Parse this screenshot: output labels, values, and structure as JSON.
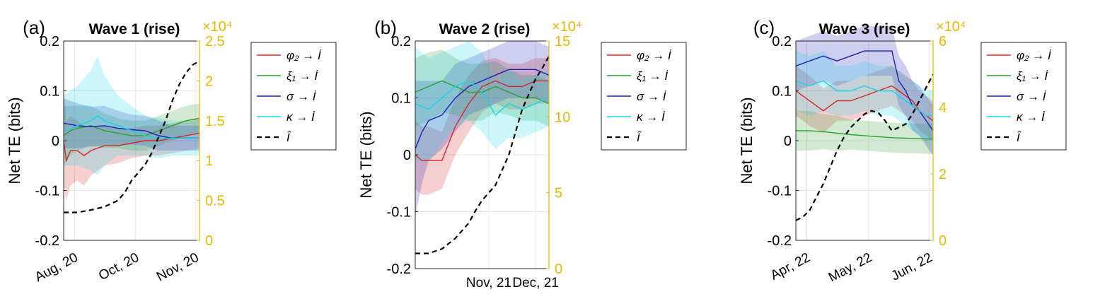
{
  "colors": {
    "phi": "#d62728",
    "xi": "#2ca02c",
    "sigma": "#1f1fb4",
    "kappa": "#17d4e8",
    "infected": "#000000",
    "right_axis": "#e6b800"
  },
  "chart_data": [
    {
      "type": "line",
      "panel_label": "(a)",
      "title": "Wave 1 (rise)",
      "ylabel": "Net TE (bits)",
      "ylim": [
        -0.2,
        0.2
      ],
      "yticks": [
        "-0.2",
        "-0.1",
        "0",
        "0.1",
        "0.2"
      ],
      "xticks": [
        "Aug, 20",
        "Oct, 20",
        "Nov, 20"
      ],
      "xtick_rotated": true,
      "y2_exponent_label": "×10⁴",
      "y2lim": [
        0,
        2.5
      ],
      "y2ticks": [
        "0",
        "0.5",
        "1",
        "1.5",
        "2",
        "2.5"
      ],
      "legend": [
        "φ₂ → İ",
        "ξ₁ → İ",
        "σ → İ",
        "κ → İ",
        "Î"
      ],
      "legend_position": "outside-right",
      "series": [
        {
          "name": "φ₂ → İ",
          "key": "phi",
          "x": [
            0,
            0.02,
            0.05,
            0.1,
            0.15,
            0.2,
            0.3,
            0.4,
            0.5,
            0.6,
            0.7,
            0.8,
            0.9,
            1
          ],
          "y": [
            0,
            -0.04,
            -0.02,
            -0.02,
            -0.03,
            -0.02,
            -0.01,
            -0.01,
            -0.005,
            0,
            0,
            0.005,
            0.01,
            0.015
          ],
          "band": [
            0.09,
            0.08,
            0.07,
            0.06,
            0.06,
            0.05,
            0.04,
            0.035,
            0.03,
            0.03,
            0.03,
            0.03,
            0.03,
            0.03
          ]
        },
        {
          "name": "ξ₁ → İ",
          "key": "xi",
          "x": [
            0,
            0.05,
            0.1,
            0.2,
            0.3,
            0.4,
            0.5,
            0.6,
            0.7,
            0.8,
            0.9,
            1
          ],
          "y": [
            0.01,
            0.02,
            0.025,
            0.03,
            0.02,
            0.015,
            0.01,
            0.01,
            0.02,
            0.03,
            0.04,
            0.045
          ],
          "band": [
            0.06,
            0.05,
            0.045,
            0.04,
            0.035,
            0.03,
            0.03,
            0.03,
            0.03,
            0.03,
            0.03,
            0.03
          ]
        },
        {
          "name": "σ → İ",
          "key": "sigma",
          "x": [
            0,
            0.1,
            0.2,
            0.3,
            0.4,
            0.5,
            0.6,
            0.7,
            0.8,
            0.9,
            1
          ],
          "y": [
            0.035,
            0.03,
            0.028,
            0.03,
            0.025,
            0.022,
            0.02,
            0.01,
            0.005,
            0.005,
            0.005
          ],
          "band": [
            0.05,
            0.045,
            0.04,
            0.04,
            0.035,
            0.03,
            0.03,
            0.03,
            0.025,
            0.025,
            0.025
          ]
        },
        {
          "name": "κ → İ",
          "key": "kappa",
          "x": [
            0,
            0.1,
            0.2,
            0.25,
            0.3,
            0.4,
            0.5,
            0.6,
            0.7,
            0.8,
            0.9,
            1
          ],
          "y": [
            0.02,
            0.03,
            0.04,
            0.05,
            0.04,
            0.03,
            0.02,
            0.01,
            0.005,
            0.005,
            0.005,
            0.005
          ],
          "band": [
            0.07,
            0.08,
            0.1,
            0.12,
            0.09,
            0.06,
            0.05,
            0.04,
            0.04,
            0.035,
            0.035,
            0.035
          ]
        },
        {
          "name": "Î",
          "key": "infected",
          "axis": "right",
          "dashed": true,
          "x": [
            0,
            0.1,
            0.2,
            0.3,
            0.4,
            0.45,
            0.5,
            0.55,
            0.6,
            0.65,
            0.7,
            0.75,
            0.8,
            0.85,
            0.9,
            0.95,
            1
          ],
          "y": [
            0.35,
            0.35,
            0.38,
            0.42,
            0.5,
            0.6,
            0.75,
            0.85,
            0.95,
            1.1,
            1.3,
            1.5,
            1.75,
            1.95,
            2.1,
            2.2,
            2.25
          ]
        }
      ]
    },
    {
      "type": "line",
      "panel_label": "(b)",
      "title": "Wave 2 (rise)",
      "ylabel": "Net TE (bits)",
      "ylim": [
        -0.2,
        0.2
      ],
      "yticks": [
        "-0.2",
        "-0.1",
        "0",
        "0.1",
        "0.2"
      ],
      "xticks": [
        "Nov, 21",
        "Dec, 21"
      ],
      "xtick_rotated": false,
      "y2_exponent_label": "×10⁴",
      "y2lim": [
        0,
        15
      ],
      "y2ticks": [
        "0",
        "5",
        "10",
        "15"
      ],
      "legend": [
        "φ₂ → İ",
        "ξ₁ → İ",
        "σ → İ",
        "κ → İ",
        "Î"
      ],
      "legend_position": "outside-right",
      "series": [
        {
          "name": "φ₂ → İ",
          "key": "phi",
          "x": [
            0,
            0.05,
            0.1,
            0.15,
            0.2,
            0.3,
            0.4,
            0.5,
            0.6,
            0.7,
            0.8,
            0.9,
            1
          ],
          "y": [
            0,
            -0.01,
            -0.01,
            -0.01,
            -0.01,
            0.05,
            0.09,
            0.12,
            0.13,
            0.12,
            0.12,
            0.13,
            0.13
          ],
          "band": [
            0.06,
            0.06,
            0.06,
            0.055,
            0.05,
            0.05,
            0.05,
            0.045,
            0.04,
            0.04,
            0.04,
            0.04,
            0.04
          ]
        },
        {
          "name": "ξ₁ → İ",
          "key": "xi",
          "x": [
            0,
            0.1,
            0.2,
            0.3,
            0.4,
            0.5,
            0.6,
            0.7,
            0.8,
            0.9,
            1
          ],
          "y": [
            0.11,
            0.12,
            0.13,
            0.12,
            0.11,
            0.11,
            0.12,
            0.11,
            0.1,
            0.1,
            0.09
          ],
          "band": [
            0.06,
            0.06,
            0.055,
            0.05,
            0.05,
            0.05,
            0.045,
            0.04,
            0.04,
            0.04,
            0.04
          ]
        },
        {
          "name": "σ → İ",
          "key": "sigma",
          "x": [
            0,
            0.05,
            0.1,
            0.2,
            0.3,
            0.4,
            0.5,
            0.6,
            0.7,
            0.8,
            0.9,
            1
          ],
          "y": [
            0.01,
            0.04,
            0.06,
            0.07,
            0.1,
            0.12,
            0.13,
            0.14,
            0.15,
            0.15,
            0.15,
            0.14
          ],
          "band": [
            0.12,
            0.09,
            0.07,
            0.06,
            0.06,
            0.05,
            0.05,
            0.05,
            0.05,
            0.05,
            0.05,
            0.05
          ]
        },
        {
          "name": "κ → İ",
          "key": "kappa",
          "x": [
            0,
            0.1,
            0.2,
            0.3,
            0.4,
            0.5,
            0.6,
            0.7,
            0.8,
            0.9,
            1
          ],
          "y": [
            0.09,
            0.08,
            0.1,
            0.12,
            0.13,
            0.11,
            0.07,
            0.09,
            0.08,
            0.09,
            0.1
          ],
          "band": [
            0.1,
            0.09,
            0.08,
            0.07,
            0.07,
            0.07,
            0.06,
            0.06,
            0.05,
            0.05,
            0.05
          ]
        },
        {
          "name": "Î",
          "key": "infected",
          "axis": "right",
          "dashed": true,
          "x": [
            0,
            0.1,
            0.2,
            0.3,
            0.4,
            0.45,
            0.5,
            0.55,
            0.6,
            0.65,
            0.7,
            0.75,
            0.8,
            0.85,
            0.9,
            0.95,
            1
          ],
          "y": [
            1,
            1,
            1.3,
            2,
            3,
            3.8,
            4.5,
            5,
            5.5,
            6.5,
            7.5,
            9,
            10.5,
            11.5,
            12.5,
            13.2,
            14
          ]
        }
      ]
    },
    {
      "type": "line",
      "panel_label": "(c)",
      "title": "Wave 3 (rise)",
      "ylabel": "Net TE (bits)",
      "ylim": [
        -0.2,
        0.2
      ],
      "yticks": [
        "-0.2",
        "-0.1",
        "0",
        "0.1",
        "0.2"
      ],
      "xticks": [
        "Apr, 22",
        "May, 22",
        "Jun, 22"
      ],
      "xtick_rotated": true,
      "y2_exponent_label": "×10⁴",
      "y2lim": [
        0,
        6
      ],
      "y2ticks": [
        "0",
        "2",
        "4",
        "6"
      ],
      "legend": [
        "φ₂ → İ",
        "ξ₁ → İ",
        "σ → İ",
        "κ → İ",
        "Î"
      ],
      "legend_position": "outside-right",
      "series": [
        {
          "name": "φ₂ → İ",
          "key": "phi",
          "x": [
            0,
            0.1,
            0.2,
            0.3,
            0.4,
            0.5,
            0.6,
            0.7,
            0.75,
            0.8,
            0.85,
            0.9,
            0.95,
            1
          ],
          "y": [
            0.1,
            0.08,
            0.06,
            0.08,
            0.08,
            0.09,
            0.1,
            0.11,
            0.1,
            0.09,
            0.08,
            0.06,
            0.05,
            0.04
          ],
          "band": [
            0.05,
            0.05,
            0.045,
            0.04,
            0.04,
            0.04,
            0.04,
            0.04,
            0.04,
            0.04,
            0.04,
            0.04,
            0.04,
            0.04
          ]
        },
        {
          "name": "ξ₁ → İ",
          "key": "xi",
          "x": [
            0,
            0.1,
            0.2,
            0.3,
            0.4,
            0.5,
            0.6,
            0.7,
            0.8,
            0.9,
            1
          ],
          "y": [
            0.02,
            0.02,
            0.018,
            0.015,
            0.012,
            0.01,
            0.008,
            0.006,
            0.005,
            0.004,
            0.003
          ],
          "band": [
            0.04,
            0.04,
            0.035,
            0.035,
            0.03,
            0.03,
            0.03,
            0.03,
            0.03,
            0.03,
            0.03
          ]
        },
        {
          "name": "σ → İ",
          "key": "sigma",
          "x": [
            0,
            0.1,
            0.2,
            0.3,
            0.4,
            0.5,
            0.6,
            0.7,
            0.75,
            0.8,
            0.85,
            0.9,
            0.95,
            1
          ],
          "y": [
            0.15,
            0.16,
            0.17,
            0.16,
            0.17,
            0.18,
            0.18,
            0.18,
            0.12,
            0.1,
            0.07,
            0.06,
            0.04,
            0.02
          ],
          "band": [
            0.05,
            0.05,
            0.05,
            0.05,
            0.05,
            0.05,
            0.05,
            0.05,
            0.05,
            0.05,
            0.05,
            0.05,
            0.05,
            0.05
          ]
        },
        {
          "name": "κ → İ",
          "key": "kappa",
          "x": [
            0,
            0.1,
            0.2,
            0.3,
            0.4,
            0.5,
            0.6,
            0.7,
            0.75,
            0.8,
            0.85,
            0.9,
            0.95,
            1
          ],
          "y": [
            0.12,
            0.11,
            0.12,
            0.1,
            0.1,
            0.11,
            0.1,
            0.1,
            0.09,
            0.08,
            0.07,
            0.06,
            0.05,
            0.05
          ],
          "band": [
            0.06,
            0.06,
            0.06,
            0.05,
            0.05,
            0.05,
            0.05,
            0.05,
            0.05,
            0.05,
            0.05,
            0.05,
            0.05,
            0.05
          ]
        },
        {
          "name": "Î",
          "key": "infected",
          "axis": "right",
          "dashed": true,
          "x": [
            0,
            0.05,
            0.1,
            0.15,
            0.2,
            0.25,
            0.3,
            0.35,
            0.4,
            0.45,
            0.5,
            0.55,
            0.6,
            0.65,
            0.7,
            0.75,
            0.8,
            0.85,
            0.9,
            0.95,
            1
          ],
          "y": [
            0.6,
            0.7,
            0.9,
            1.3,
            1.7,
            2.2,
            2.7,
            3.1,
            3.4,
            3.6,
            3.8,
            3.9,
            3.85,
            3.6,
            3.3,
            3.4,
            3.5,
            3.8,
            4.2,
            4.6,
            5
          ]
        }
      ]
    }
  ]
}
